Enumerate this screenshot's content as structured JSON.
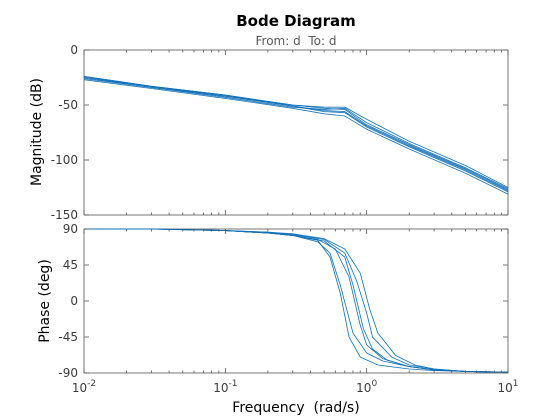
{
  "chart_data": {
    "type": "line",
    "title": "Bode Diagram",
    "subtitle": "From: d  To: d",
    "xlabel": "Frequency  (rad/s)",
    "x_scale": "log",
    "xlim": [
      0.01,
      10
    ],
    "x_ticks": [
      {
        "base": "10",
        "exp": "-2"
      },
      {
        "base": "10",
        "exp": "-1"
      },
      {
        "base": "10",
        "exp": "0"
      },
      {
        "base": "10",
        "exp": "1"
      }
    ],
    "grid": false,
    "line_color": "#0f6fb8",
    "panels": [
      {
        "name": "magnitude",
        "ylabel": "Magnitude (dB)",
        "ylim": [
          -150,
          0
        ],
        "yticks": [
          "0",
          "-50",
          "-100",
          "-150"
        ],
        "series": [
          {
            "x": [
              0.01,
              0.03,
              0.1,
              0.3,
              0.5,
              0.7,
              1.0,
              2.0,
              5.0,
              10.0
            ],
            "y": [
              -24,
              -33,
              -41,
              -50,
              -53,
              -54,
              -68,
              -86,
              -108,
              -127
            ]
          },
          {
            "x": [
              0.01,
              0.03,
              0.1,
              0.3,
              0.5,
              0.7,
              1.0,
              2.0,
              5.0,
              10.0
            ],
            "y": [
              -25,
              -34,
              -42,
              -51,
              -56,
              -57,
              -70,
              -88,
              -110,
              -129
            ]
          },
          {
            "x": [
              0.01,
              0.03,
              0.1,
              0.3,
              0.5,
              0.7,
              1.0,
              2.0,
              5.0,
              10.0
            ],
            "y": [
              -26,
              -34,
              -43,
              -52,
              -54,
              -53,
              -66,
              -85,
              -107,
              -126
            ]
          },
          {
            "x": [
              0.01,
              0.03,
              0.1,
              0.3,
              0.5,
              0.7,
              1.0,
              2.0,
              5.0,
              10.0
            ],
            "y": [
              -25,
              -33,
              -42,
              -50,
              -52,
              -52,
              -63,
              -83,
              -105,
              -125
            ]
          },
          {
            "x": [
              0.01,
              0.03,
              0.1,
              0.3,
              0.5,
              0.7,
              1.0,
              2.0,
              5.0,
              10.0
            ],
            "y": [
              -27,
              -35,
              -44,
              -53,
              -58,
              -60,
              -72,
              -90,
              -112,
              -131
            ]
          },
          {
            "x": [
              0.01,
              0.03,
              0.1,
              0.3,
              0.5,
              0.7,
              1.0,
              2.0,
              5.0,
              10.0
            ],
            "y": [
              -24,
              -33,
              -41,
              -51,
              -55,
              -56,
              -69,
              -87,
              -109,
              -128
            ]
          }
        ]
      },
      {
        "name": "phase",
        "ylabel": "Phase (deg)",
        "ylim": [
          -90,
          90
        ],
        "yticks": [
          "90",
          "45",
          "0",
          "-45",
          "-90"
        ],
        "series": [
          {
            "x": [
              0.01,
              0.03,
              0.1,
              0.2,
              0.3,
              0.45,
              0.55,
              0.65,
              0.8,
              1.0,
              1.3,
              2.0,
              3.0,
              5.0,
              10.0
            ],
            "y": [
              90,
              90,
              88,
              85,
              82,
              74,
              60,
              20,
              -40,
              -65,
              -75,
              -82,
              -86,
              -88,
              -89
            ]
          },
          {
            "x": [
              0.01,
              0.03,
              0.1,
              0.2,
              0.3,
              0.45,
              0.6,
              0.75,
              0.9,
              1.0,
              1.3,
              2.0,
              3.0,
              5.0,
              10.0
            ],
            "y": [
              90,
              90,
              88,
              85,
              82,
              77,
              65,
              30,
              -30,
              -55,
              -72,
              -82,
              -86,
              -88,
              -89
            ]
          },
          {
            "x": [
              0.01,
              0.03,
              0.1,
              0.2,
              0.3,
              0.5,
              0.7,
              0.85,
              1.0,
              1.1,
              1.5,
              2.0,
              3.0,
              5.0,
              10.0
            ],
            "y": [
              90,
              90,
              88,
              86,
              83,
              77,
              60,
              25,
              -15,
              -45,
              -70,
              -80,
              -85,
              -88,
              -89
            ]
          },
          {
            "x": [
              0.01,
              0.03,
              0.1,
              0.2,
              0.3,
              0.5,
              0.7,
              0.9,
              1.05,
              1.2,
              1.6,
              2.2,
              3.0,
              5.0,
              10.0
            ],
            "y": [
              90,
              90,
              88,
              86,
              84,
              78,
              65,
              35,
              -10,
              -40,
              -68,
              -80,
              -85,
              -88,
              -89
            ]
          },
          {
            "x": [
              0.01,
              0.03,
              0.1,
              0.2,
              0.3,
              0.45,
              0.55,
              0.65,
              0.75,
              0.9,
              1.2,
              2.0,
              3.0,
              5.0,
              10.0
            ],
            "y": [
              90,
              90,
              88,
              85,
              82,
              76,
              55,
              10,
              -45,
              -70,
              -80,
              -85,
              -87,
              -88,
              -89
            ]
          },
          {
            "x": [
              0.01,
              0.03,
              0.1,
              0.2,
              0.3,
              0.5,
              0.7,
              0.8,
              0.95,
              1.1,
              1.4,
              2.0,
              3.0,
              5.0,
              10.0
            ],
            "y": [
              90,
              90,
              88,
              85,
              82,
              75,
              55,
              20,
              -35,
              -60,
              -74,
              -82,
              -86,
              -88,
              -89
            ]
          }
        ]
      }
    ]
  }
}
